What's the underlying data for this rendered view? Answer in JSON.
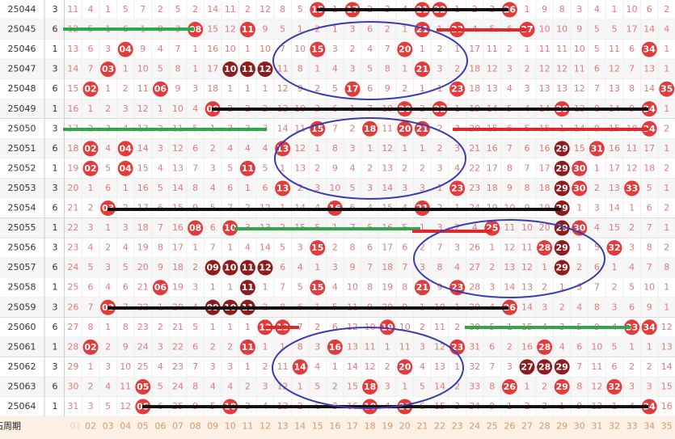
{
  "rows": [
    {
      "issue": "25044",
      "count": "3",
      "cells": [
        "11",
        "4",
        "1",
        "5",
        "7",
        "2",
        "5",
        "2",
        "14",
        "11",
        "2",
        "12",
        "8",
        "5",
        "15",
        "1",
        "17",
        "2",
        "3",
        "4",
        "21",
        "22",
        "1",
        "2",
        "3",
        "26",
        "1",
        "9",
        "8",
        "3",
        "4",
        "1",
        "10",
        "6",
        "2"
      ],
      "balls": [
        14,
        16,
        20,
        21,
        25
      ],
      "dark": []
    },
    {
      "issue": "25045",
      "count": "6",
      "cells": [
        "12",
        "5",
        "1",
        "6",
        "1",
        "8",
        "3",
        "08",
        "15",
        "12",
        "11",
        "9",
        "5",
        "1",
        "2",
        "1",
        "3",
        "6",
        "2",
        "1",
        "21",
        "1",
        "23",
        "4",
        "5",
        "6",
        "27",
        "10",
        "10",
        "9",
        "5",
        "5",
        "17",
        "14",
        "4"
      ],
      "balls": [
        7,
        10,
        20,
        22,
        26
      ],
      "dark": []
    },
    {
      "issue": "25046",
      "count": "1",
      "cells": [
        "13",
        "6",
        "3",
        "04",
        "9",
        "4",
        "7",
        "1",
        "16",
        "10",
        "1",
        "10",
        "7",
        "10",
        "15",
        "3",
        "2",
        "4",
        "7",
        "20",
        "1",
        "2",
        "1",
        "17",
        "11",
        "2",
        "1",
        "11",
        "11",
        "10",
        "5",
        "11",
        "6",
        "34",
        "1"
      ],
      "balls": [
        3,
        14,
        19,
        33
      ],
      "dark": []
    },
    {
      "issue": "25047",
      "count": "3",
      "cells": [
        "14",
        "7",
        "03",
        "1",
        "10",
        "5",
        "8",
        "1",
        "17",
        "10",
        "11",
        "12",
        "11",
        "8",
        "1",
        "4",
        "3",
        "5",
        "8",
        "1",
        "21",
        "3",
        "2",
        "18",
        "12",
        "3",
        "2",
        "12",
        "12",
        "11",
        "6",
        "12",
        "7",
        "13",
        "1"
      ],
      "balls": [
        2,
        9,
        10,
        11,
        20
      ],
      "dark": [
        9,
        10,
        11
      ]
    },
    {
      "issue": "25048",
      "count": "6",
      "cells": [
        "15",
        "02",
        "1",
        "2",
        "11",
        "06",
        "9",
        "3",
        "18",
        "1",
        "1",
        "1",
        "12",
        "9",
        "2",
        "5",
        "17",
        "6",
        "9",
        "2",
        "1",
        "1",
        "23",
        "18",
        "13",
        "4",
        "3",
        "13",
        "13",
        "12",
        "7",
        "13",
        "8",
        "14",
        "35"
      ],
      "balls": [
        1,
        5,
        16,
        22,
        34
      ],
      "dark": []
    },
    {
      "issue": "25049",
      "count": "1",
      "cells": [
        "16",
        "1",
        "2",
        "3",
        "12",
        "1",
        "10",
        "4",
        "09",
        "2",
        "2",
        "2",
        "13",
        "10",
        "3",
        "6",
        "1",
        "7",
        "10",
        "20",
        "2",
        "22",
        "1",
        "19",
        "14",
        "5",
        "4",
        "14",
        "29",
        "13",
        "8",
        "14",
        "9",
        "34",
        "1"
      ],
      "balls": [
        8,
        19,
        21,
        28,
        33
      ],
      "dark": []
    },
    {
      "issue": "25050",
      "count": "3",
      "cells": [
        "17",
        "2",
        "3",
        "4",
        "13",
        "2",
        "11",
        "5",
        "1",
        "3",
        "3",
        "3",
        "14",
        "11",
        "15",
        "7",
        "2",
        "18",
        "11",
        "20",
        "21",
        "2",
        "3",
        "20",
        "15",
        "6",
        "5",
        "15",
        "1",
        "14",
        "9",
        "15",
        "10",
        "34",
        "2"
      ],
      "balls": [
        14,
        17,
        19,
        20,
        33
      ],
      "dark": []
    },
    {
      "issue": "25051",
      "count": "6",
      "cells": [
        "18",
        "02",
        "4",
        "04",
        "14",
        "3",
        "12",
        "6",
        "2",
        "4",
        "4",
        "4",
        "13",
        "12",
        "1",
        "8",
        "3",
        "1",
        "12",
        "1",
        "1",
        "2",
        "3",
        "21",
        "16",
        "7",
        "6",
        "16",
        "29",
        "15",
        "31",
        "16",
        "11",
        "17",
        "1"
      ],
      "balls": [
        1,
        3,
        12,
        28,
        30
      ],
      "dark": [
        28
      ]
    },
    {
      "issue": "25052",
      "count": "1",
      "cells": [
        "19",
        "02",
        "5",
        "04",
        "15",
        "4",
        "13",
        "7",
        "3",
        "5",
        "11",
        "5",
        "1",
        "13",
        "2",
        "9",
        "4",
        "2",
        "13",
        "2",
        "2",
        "3",
        "4",
        "22",
        "17",
        "8",
        "7",
        "17",
        "29",
        "30",
        "1",
        "17",
        "12",
        "18",
        "2"
      ],
      "balls": [
        1,
        3,
        10,
        28,
        29
      ],
      "dark": [
        28
      ]
    },
    {
      "issue": "25053",
      "count": "3",
      "cells": [
        "20",
        "1",
        "6",
        "1",
        "16",
        "5",
        "14",
        "8",
        "4",
        "6",
        "1",
        "6",
        "13",
        "2",
        "3",
        "10",
        "5",
        "3",
        "14",
        "3",
        "3",
        "1",
        "23",
        "23",
        "18",
        "9",
        "8",
        "18",
        "29",
        "30",
        "2",
        "13",
        "33",
        "5",
        "1"
      ],
      "balls": [
        12,
        22,
        28,
        29,
        32
      ],
      "dark": [
        28
      ]
    },
    {
      "issue": "25054",
      "count": "6",
      "cells": [
        "21",
        "2",
        "03",
        "2",
        "17",
        "6",
        "15",
        "9",
        "5",
        "7",
        "2",
        "12",
        "1",
        "14",
        "4",
        "16",
        "6",
        "4",
        "15",
        "4",
        "21",
        "2",
        "1",
        "24",
        "19",
        "10",
        "9",
        "19",
        "29",
        "1",
        "3",
        "14",
        "1",
        "6",
        "2"
      ],
      "balls": [
        2,
        15,
        20,
        28
      ],
      "dark": [
        28
      ]
    },
    {
      "issue": "25055",
      "count": "1",
      "cells": [
        "22",
        "3",
        "1",
        "3",
        "18",
        "7",
        "16",
        "08",
        "6",
        "10",
        "3",
        "13",
        "2",
        "15",
        "5",
        "1",
        "7",
        "5",
        "16",
        "5",
        "1",
        "3",
        "2",
        "4",
        "25",
        "11",
        "10",
        "20",
        "29",
        "30",
        "4",
        "15",
        "2",
        "7",
        "1"
      ],
      "balls": [
        7,
        9,
        24,
        28,
        29
      ],
      "dark": [
        28
      ]
    },
    {
      "issue": "25056",
      "count": "3",
      "cells": [
        "23",
        "4",
        "2",
        "4",
        "19",
        "8",
        "17",
        "1",
        "7",
        "1",
        "4",
        "14",
        "5",
        "3",
        "15",
        "2",
        "8",
        "6",
        "17",
        "6",
        "2",
        "7",
        "3",
        "26",
        "1",
        "12",
        "11",
        "28",
        "29",
        "1",
        "5",
        "32",
        "3",
        "8",
        "2"
      ],
      "balls": [
        14,
        27,
        28,
        31
      ],
      "dark": [
        28
      ]
    },
    {
      "issue": "25057",
      "count": "6",
      "cells": [
        "24",
        "5",
        "3",
        "5",
        "20",
        "9",
        "18",
        "2",
        "09",
        "10",
        "11",
        "12",
        "6",
        "4",
        "1",
        "3",
        "9",
        "7",
        "18",
        "7",
        "3",
        "8",
        "4",
        "27",
        "2",
        "13",
        "12",
        "1",
        "29",
        "2",
        "6",
        "1",
        "4",
        "7",
        "8"
      ],
      "balls": [
        8,
        9,
        10,
        11,
        28
      ],
      "dark": [
        8,
        9,
        10,
        11,
        28
      ]
    },
    {
      "issue": "25058",
      "count": "1",
      "cells": [
        "25",
        "6",
        "4",
        "6",
        "21",
        "06",
        "19",
        "3",
        "1",
        "1",
        "11",
        "1",
        "7",
        "5",
        "15",
        "4",
        "10",
        "8",
        "19",
        "8",
        "21",
        "9",
        "23",
        "28",
        "3",
        "14",
        "13",
        "2",
        "1",
        "3",
        "7",
        "2",
        "5",
        "10",
        "1"
      ],
      "balls": [
        5,
        10,
        14,
        20,
        22
      ],
      "dark": [
        10
      ]
    },
    {
      "issue": "25059",
      "count": "3",
      "cells": [
        "26",
        "7",
        "03",
        "7",
        "22",
        "1",
        "20",
        "4",
        "09",
        "10",
        "11",
        "2",
        "8",
        "6",
        "1",
        "5",
        "11",
        "9",
        "20",
        "9",
        "1",
        "10",
        "1",
        "29",
        "4",
        "26",
        "14",
        "3",
        "2",
        "4",
        "8",
        "3",
        "6",
        "9",
        "1"
      ],
      "balls": [
        2,
        8,
        9,
        10,
        25
      ],
      "dark": [
        8,
        9,
        10
      ]
    },
    {
      "issue": "25060",
      "count": "6",
      "cells": [
        "27",
        "8",
        "1",
        "8",
        "23",
        "2",
        "21",
        "5",
        "1",
        "1",
        "1",
        "12",
        "13",
        "7",
        "2",
        "6",
        "12",
        "10",
        "19",
        "10",
        "2",
        "11",
        "2",
        "30",
        "5",
        "1",
        "15",
        "4",
        "3",
        "5",
        "9",
        "4",
        "33",
        "34",
        "12"
      ],
      "balls": [
        11,
        12,
        18,
        32,
        33
      ],
      "dark": []
    },
    {
      "issue": "25061",
      "count": "1",
      "cells": [
        "28",
        "02",
        "2",
        "9",
        "24",
        "3",
        "22",
        "6",
        "2",
        "2",
        "11",
        "1",
        "1",
        "8",
        "3",
        "16",
        "13",
        "11",
        "1",
        "11",
        "3",
        "12",
        "23",
        "31",
        "6",
        "2",
        "16",
        "28",
        "4",
        "6",
        "10",
        "5",
        "1",
        "1",
        "13"
      ],
      "balls": [
        1,
        10,
        15,
        22,
        27
      ],
      "dark": []
    },
    {
      "issue": "25062",
      "count": "3",
      "cells": [
        "29",
        "1",
        "3",
        "10",
        "25",
        "4",
        "23",
        "7",
        "3",
        "3",
        "1",
        "2",
        "11",
        "14",
        "4",
        "1",
        "14",
        "12",
        "2",
        "20",
        "4",
        "13",
        "1",
        "32",
        "7",
        "3",
        "27",
        "28",
        "29",
        "7",
        "11",
        "6",
        "2",
        "2",
        "14"
      ],
      "balls": [
        13,
        19,
        26,
        27,
        28
      ],
      "dark": [
        26,
        27,
        28
      ]
    },
    {
      "issue": "25063",
      "count": "6",
      "cells": [
        "30",
        "2",
        "4",
        "11",
        "05",
        "5",
        "24",
        "8",
        "4",
        "4",
        "2",
        "3",
        "12",
        "1",
        "5",
        "2",
        "15",
        "18",
        "3",
        "1",
        "5",
        "14",
        "2",
        "33",
        "8",
        "26",
        "1",
        "2",
        "29",
        "8",
        "12",
        "32",
        "3",
        "3",
        "15"
      ],
      "balls": [
        4,
        17,
        25,
        28,
        31
      ],
      "dark": []
    },
    {
      "issue": "25064",
      "count": "1",
      "cells": [
        "31",
        "3",
        "5",
        "12",
        "05",
        "6",
        "25",
        "9",
        "5",
        "10",
        "3",
        "4",
        "13",
        "2",
        "6",
        "3",
        "16",
        "18",
        "4",
        "20",
        "6",
        "15",
        "3",
        "34",
        "9",
        "1",
        "2",
        "3",
        "1",
        "9",
        "13",
        "1",
        "4",
        "34",
        "16"
      ],
      "balls": [
        4,
        9,
        17,
        19,
        33
      ],
      "dark": []
    }
  ],
  "footer": {
    "label": "绿石周期",
    "numbers": [
      "01",
      "02",
      "03",
      "04",
      "05",
      "06",
      "07",
      "08",
      "09",
      "10",
      "11",
      "12",
      "13",
      "14",
      "15",
      "16",
      "17",
      "18",
      "19",
      "20",
      "21",
      "22",
      "23",
      "24",
      "25",
      "26",
      "27",
      "28",
      "29",
      "30",
      "31",
      "32",
      "33",
      "34",
      "35"
    ]
  },
  "colors": {
    "ball": "#e33b3b",
    "dark": "#8e1c1c"
  }
}
